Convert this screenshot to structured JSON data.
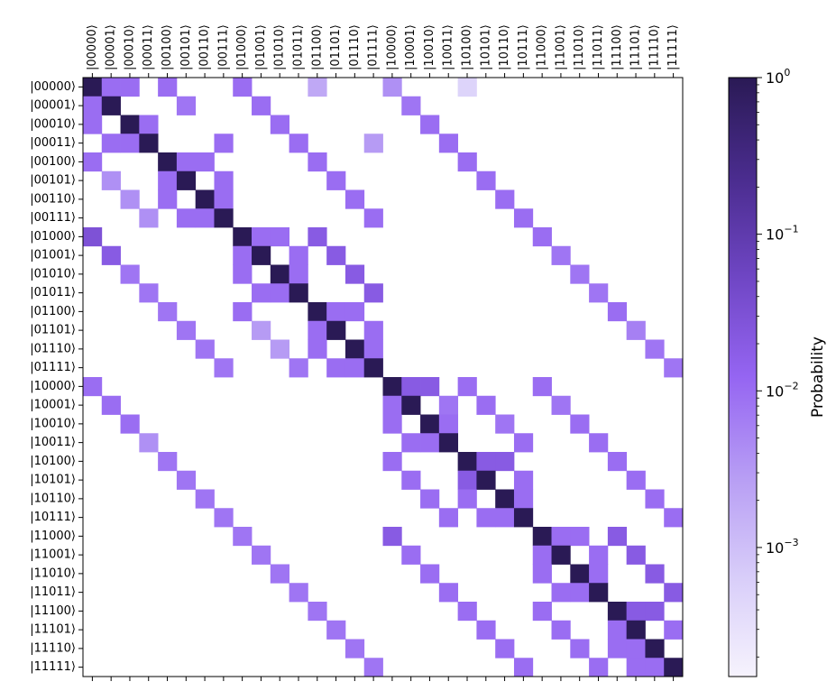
{
  "chart_data": {
    "type": "heatmap",
    "title": "",
    "xlabel": "",
    "ylabel": "",
    "colorbar_label": "Probability",
    "colorbar_scale": "log",
    "colorbar_range": [
      0.00015,
      1
    ],
    "colorbar_ticks": [
      {
        "value": 1,
        "base": "10",
        "exp": "0"
      },
      {
        "value": 0.1,
        "base": "10",
        "exp": "−1"
      },
      {
        "value": 0.01,
        "base": "10",
        "exp": "−2"
      },
      {
        "value": 0.001,
        "base": "10",
        "exp": "−3"
      }
    ],
    "colormap": [
      "#f6f3fd",
      "#d8cdf9",
      "#b79df4",
      "#9565f2",
      "#6f46c4",
      "#4a2c8e",
      "#2a1a55"
    ],
    "x_labels": [
      "|00000⟩",
      "|00001⟩",
      "|00010⟩",
      "|00011⟩",
      "|00100⟩",
      "|00101⟩",
      "|00110⟩",
      "|00111⟩",
      "|01000⟩",
      "|01001⟩",
      "|01010⟩",
      "|01011⟩",
      "|01100⟩",
      "|01101⟩",
      "|01110⟩",
      "|01111⟩",
      "|10000⟩",
      "|10001⟩",
      "|10010⟩",
      "|10011⟩",
      "|10100⟩",
      "|10101⟩",
      "|10110⟩",
      "|10111⟩",
      "|11000⟩",
      "|11001⟩",
      "|11010⟩",
      "|11011⟩",
      "|11100⟩",
      "|11101⟩",
      "|11110⟩",
      "|11111⟩"
    ],
    "y_labels": [
      "|00000⟩",
      "|00001⟩",
      "|00010⟩",
      "|00011⟩",
      "|00100⟩",
      "|00101⟩",
      "|00110⟩",
      "|00111⟩",
      "|01000⟩",
      "|01001⟩",
      "|01010⟩",
      "|01011⟩",
      "|01100⟩",
      "|01101⟩",
      "|01110⟩",
      "|01111⟩",
      "|10000⟩",
      "|10001⟩",
      "|10010⟩",
      "|10011⟩",
      "|10100⟩",
      "|10101⟩",
      "|10110⟩",
      "|10111⟩",
      "|11000⟩",
      "|11001⟩",
      "|11010⟩",
      "|11011⟩",
      "|11100⟩",
      "|11101⟩",
      "|11110⟩",
      "|11111⟩"
    ],
    "diagonal_value": 1,
    "cells": [
      [
        0,
        1,
        0.01
      ],
      [
        0,
        2,
        0.01
      ],
      [
        0,
        4,
        0.01
      ],
      [
        0,
        8,
        0.01
      ],
      [
        0,
        12,
        0.002
      ],
      [
        0,
        16,
        0.004
      ],
      [
        0,
        20,
        0.0005
      ],
      [
        1,
        0,
        0.01
      ],
      [
        1,
        5,
        0.008
      ],
      [
        1,
        9,
        0.01
      ],
      [
        1,
        17,
        0.008
      ],
      [
        2,
        0,
        0.01
      ],
      [
        2,
        3,
        0.01
      ],
      [
        2,
        10,
        0.01
      ],
      [
        2,
        18,
        0.01
      ],
      [
        3,
        1,
        0.01
      ],
      [
        3,
        2,
        0.01
      ],
      [
        3,
        7,
        0.01
      ],
      [
        3,
        11,
        0.01
      ],
      [
        3,
        15,
        0.003
      ],
      [
        3,
        19,
        0.01
      ],
      [
        4,
        0,
        0.01
      ],
      [
        4,
        5,
        0.01
      ],
      [
        4,
        6,
        0.01
      ],
      [
        4,
        12,
        0.01
      ],
      [
        4,
        20,
        0.01
      ],
      [
        5,
        1,
        0.004
      ],
      [
        5,
        4,
        0.01
      ],
      [
        5,
        7,
        0.01
      ],
      [
        5,
        13,
        0.01
      ],
      [
        5,
        21,
        0.01
      ],
      [
        6,
        2,
        0.004
      ],
      [
        6,
        4,
        0.01
      ],
      [
        6,
        7,
        0.01
      ],
      [
        6,
        14,
        0.01
      ],
      [
        6,
        22,
        0.01
      ],
      [
        7,
        3,
        0.004
      ],
      [
        7,
        5,
        0.01
      ],
      [
        7,
        6,
        0.01
      ],
      [
        7,
        15,
        0.01
      ],
      [
        7,
        23,
        0.01
      ],
      [
        8,
        0,
        0.03
      ],
      [
        8,
        9,
        0.01
      ],
      [
        8,
        10,
        0.01
      ],
      [
        8,
        12,
        0.02
      ],
      [
        8,
        24,
        0.01
      ],
      [
        9,
        1,
        0.02
      ],
      [
        9,
        8,
        0.01
      ],
      [
        9,
        11,
        0.01
      ],
      [
        9,
        13,
        0.02
      ],
      [
        9,
        25,
        0.008
      ],
      [
        10,
        2,
        0.008
      ],
      [
        10,
        8,
        0.01
      ],
      [
        10,
        11,
        0.01
      ],
      [
        10,
        14,
        0.02
      ],
      [
        10,
        26,
        0.008
      ],
      [
        11,
        3,
        0.008
      ],
      [
        11,
        9,
        0.01
      ],
      [
        11,
        10,
        0.01
      ],
      [
        11,
        15,
        0.02
      ],
      [
        11,
        27,
        0.008
      ],
      [
        12,
        4,
        0.008
      ],
      [
        12,
        8,
        0.01
      ],
      [
        12,
        13,
        0.01
      ],
      [
        12,
        14,
        0.01
      ],
      [
        12,
        28,
        0.01
      ],
      [
        13,
        5,
        0.008
      ],
      [
        13,
        9,
        0.003
      ],
      [
        13,
        12,
        0.01
      ],
      [
        13,
        15,
        0.01
      ],
      [
        13,
        29,
        0.006
      ],
      [
        14,
        6,
        0.008
      ],
      [
        14,
        10,
        0.003
      ],
      [
        14,
        12,
        0.01
      ],
      [
        14,
        15,
        0.01
      ],
      [
        14,
        30,
        0.008
      ],
      [
        15,
        7,
        0.008
      ],
      [
        15,
        11,
        0.008
      ],
      [
        15,
        13,
        0.01
      ],
      [
        15,
        14,
        0.01
      ],
      [
        15,
        31,
        0.008
      ],
      [
        16,
        0,
        0.01
      ],
      [
        16,
        17,
        0.02
      ],
      [
        16,
        18,
        0.02
      ],
      [
        16,
        20,
        0.01
      ],
      [
        16,
        24,
        0.01
      ],
      [
        17,
        1,
        0.01
      ],
      [
        17,
        16,
        0.01
      ],
      [
        17,
        19,
        0.008
      ],
      [
        17,
        21,
        0.01
      ],
      [
        17,
        25,
        0.008
      ],
      [
        18,
        2,
        0.01
      ],
      [
        18,
        16,
        0.01
      ],
      [
        18,
        19,
        0.01
      ],
      [
        18,
        22,
        0.008
      ],
      [
        18,
        26,
        0.01
      ],
      [
        19,
        3,
        0.004
      ],
      [
        19,
        17,
        0.01
      ],
      [
        19,
        18,
        0.01
      ],
      [
        19,
        23,
        0.01
      ],
      [
        19,
        27,
        0.01
      ],
      [
        20,
        4,
        0.008
      ],
      [
        20,
        16,
        0.01
      ],
      [
        20,
        21,
        0.02
      ],
      [
        20,
        22,
        0.02
      ],
      [
        20,
        28,
        0.01
      ],
      [
        21,
        5,
        0.008
      ],
      [
        21,
        17,
        0.01
      ],
      [
        21,
        20,
        0.02
      ],
      [
        21,
        23,
        0.01
      ],
      [
        21,
        29,
        0.01
      ],
      [
        22,
        6,
        0.008
      ],
      [
        22,
        18,
        0.01
      ],
      [
        22,
        20,
        0.01
      ],
      [
        22,
        23,
        0.01
      ],
      [
        22,
        30,
        0.01
      ],
      [
        23,
        7,
        0.008
      ],
      [
        23,
        19,
        0.01
      ],
      [
        23,
        21,
        0.01
      ],
      [
        23,
        22,
        0.01
      ],
      [
        23,
        31,
        0.01
      ],
      [
        24,
        8,
        0.008
      ],
      [
        24,
        16,
        0.02
      ],
      [
        24,
        25,
        0.01
      ],
      [
        24,
        26,
        0.01
      ],
      [
        24,
        28,
        0.02
      ],
      [
        25,
        9,
        0.008
      ],
      [
        25,
        17,
        0.01
      ],
      [
        25,
        24,
        0.01
      ],
      [
        25,
        27,
        0.01
      ],
      [
        25,
        29,
        0.02
      ],
      [
        26,
        10,
        0.008
      ],
      [
        26,
        18,
        0.01
      ],
      [
        26,
        24,
        0.01
      ],
      [
        26,
        27,
        0.01
      ],
      [
        26,
        30,
        0.02
      ],
      [
        27,
        11,
        0.008
      ],
      [
        27,
        19,
        0.01
      ],
      [
        27,
        25,
        0.01
      ],
      [
        27,
        26,
        0.01
      ],
      [
        27,
        31,
        0.02
      ],
      [
        28,
        12,
        0.008
      ],
      [
        28,
        20,
        0.01
      ],
      [
        28,
        24,
        0.01
      ],
      [
        28,
        29,
        0.02
      ],
      [
        28,
        30,
        0.02
      ],
      [
        29,
        13,
        0.008
      ],
      [
        29,
        21,
        0.01
      ],
      [
        29,
        25,
        0.01
      ],
      [
        29,
        28,
        0.01
      ],
      [
        29,
        31,
        0.01
      ],
      [
        30,
        14,
        0.008
      ],
      [
        30,
        22,
        0.01
      ],
      [
        30,
        26,
        0.01
      ],
      [
        30,
        28,
        0.01
      ],
      [
        30,
        29,
        0.01
      ],
      [
        31,
        15,
        0.008
      ],
      [
        31,
        23,
        0.01
      ],
      [
        31,
        27,
        0.01
      ],
      [
        31,
        29,
        0.01
      ],
      [
        31,
        30,
        0.01
      ]
    ]
  }
}
